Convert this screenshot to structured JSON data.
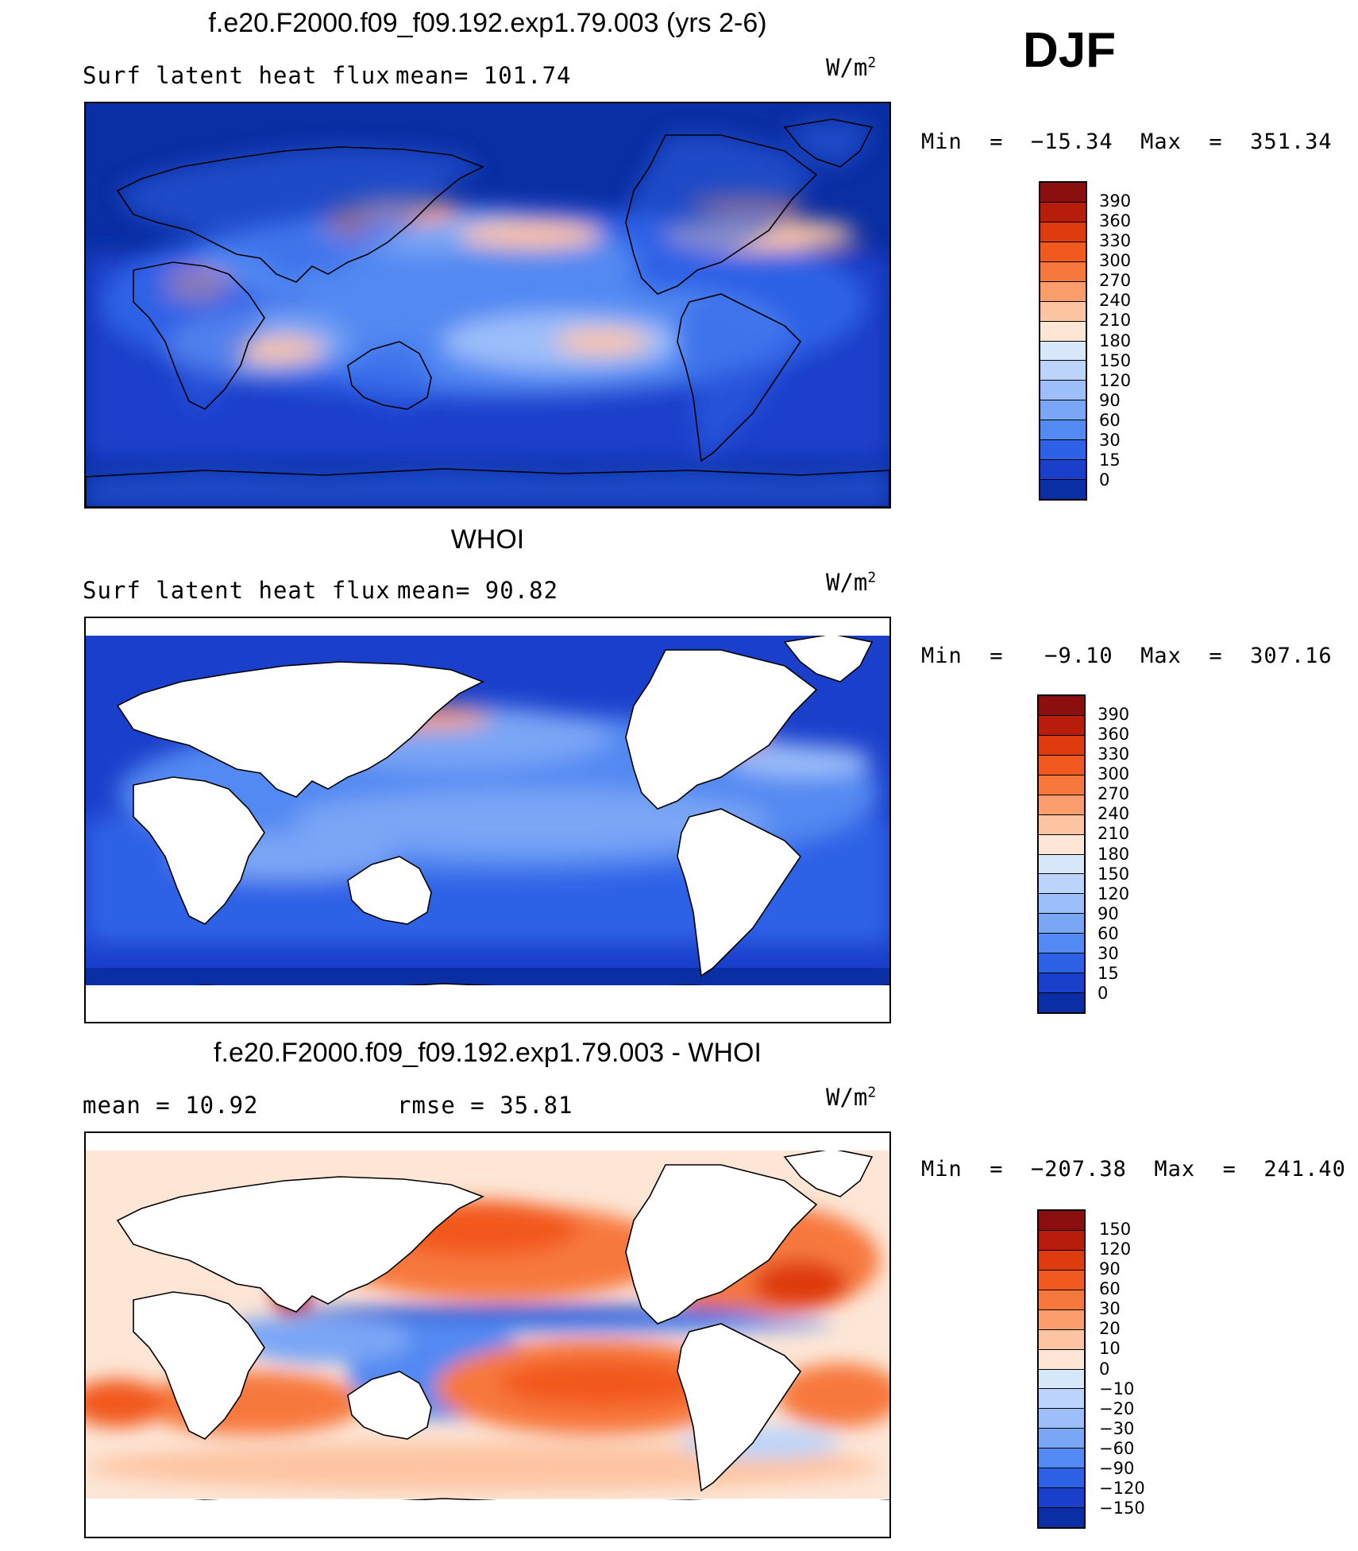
{
  "season": "DJF",
  "units": {
    "text": "W/m",
    "exp": "2"
  },
  "panels": [
    {
      "id": "model",
      "title": "f.e20.F2000.f09_f09.192.exp1.79.003 (yrs 2-6)",
      "left_label": "Surf latent heat flux",
      "mid_label": "mean=  101.74",
      "minmax": "Min  =  −15.34  Max  =  351.34",
      "colorbar": {
        "labels": [
          "390",
          "360",
          "330",
          "300",
          "270",
          "240",
          "210",
          "180",
          "150",
          "120",
          "90",
          "60",
          "30",
          "15",
          "0"
        ],
        "colors": [
          "#8c0f0f",
          "#b81d0c",
          "#de3b0e",
          "#f2591f",
          "#f7783c",
          "#fc9d6c",
          "#fdc4a2",
          "#fde6d6",
          "#d8e8fb",
          "#bcd4fb",
          "#9cbefa",
          "#7aa6f6",
          "#5389f2",
          "#2e62e6",
          "#1a3fcb",
          "#0a2ea3"
        ]
      }
    },
    {
      "id": "obs",
      "title": "WHOI",
      "left_label": "Surf latent heat flux",
      "mid_label": "mean=   90.82",
      "minmax": "Min  =   −9.10  Max  =  307.16",
      "colorbar": {
        "labels": [
          "390",
          "360",
          "330",
          "300",
          "270",
          "240",
          "210",
          "180",
          "150",
          "120",
          "90",
          "60",
          "30",
          "15",
          "0"
        ],
        "colors": [
          "#8c0f0f",
          "#b81d0c",
          "#de3b0e",
          "#f2591f",
          "#f7783c",
          "#fc9d6c",
          "#fdc4a2",
          "#fde6d6",
          "#d8e8fb",
          "#bcd4fb",
          "#9cbefa",
          "#7aa6f6",
          "#5389f2",
          "#2e62e6",
          "#1a3fcb",
          "#0a2ea3"
        ]
      }
    },
    {
      "id": "diff",
      "title": "f.e20.F2000.f09_f09.192.exp1.79.003 - WHOI",
      "left_label": "mean  =    10.92",
      "mid_label": "rmse  =    35.81",
      "minmax": "Min  =  −207.38  Max  =  241.40",
      "colorbar": {
        "labels": [
          "150",
          "120",
          "90",
          "60",
          "30",
          "20",
          "10",
          "0",
          "−10",
          "−20",
          "−30",
          "−60",
          "−90",
          "−120",
          "−150"
        ],
        "colors": [
          "#8c0f0f",
          "#b81d0c",
          "#de3b0e",
          "#f2591f",
          "#f7783c",
          "#fc9d6c",
          "#fdc4a2",
          "#fde6d6",
          "#d8e8fb",
          "#bcd4fb",
          "#9cbefa",
          "#7aa6f6",
          "#5389f2",
          "#2e62e6",
          "#1a3fcb",
          "#0a2ea3"
        ]
      }
    }
  ]
}
